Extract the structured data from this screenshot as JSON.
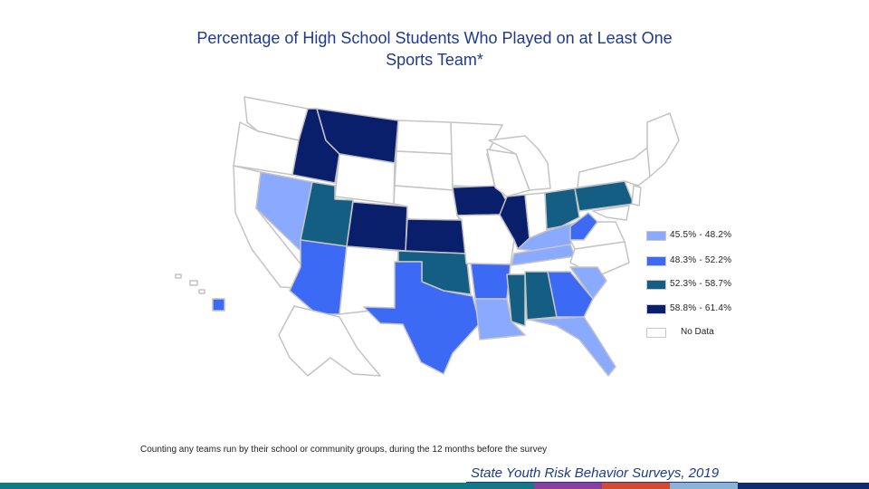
{
  "title_line1": "Percentage of High School Students Who Played on at Least One",
  "title_line2": "Sports Team*",
  "legend": [
    {
      "label": "45.5% - 48.2%",
      "color": "#8aaaff"
    },
    {
      "label": "48.3% - 52.2%",
      "color": "#3d6af5"
    },
    {
      "label": "52.3% - 58.7%",
      "color": "#135e82"
    },
    {
      "label": "58.8% - 61.4%",
      "color": "#0a1f6b"
    }
  ],
  "no_data": {
    "label": "No Data",
    "color": "#ffffff"
  },
  "map_colors": {
    "no_data": "#ffffff",
    "border": "#c4c4c4"
  },
  "footnote": "Counting any teams run by their school or community groups, during the 12 months before the survey",
  "source": "State Youth Risk Behavior Surveys, 2019",
  "bottom_bar_colors": [
    "#127a85",
    "#8a3f9e",
    "#d44a2a",
    "#8ab3d6",
    "#0f2d6e"
  ]
}
